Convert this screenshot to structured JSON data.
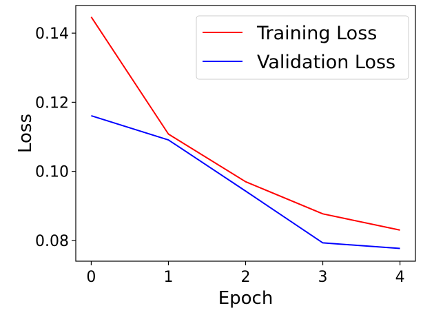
{
  "chart_data": {
    "type": "line",
    "title": "",
    "xlabel": "Epoch",
    "ylabel": "Loss",
    "x": [
      0,
      1,
      2,
      3,
      4
    ],
    "xlim": [
      -0.2,
      4.2
    ],
    "ylim": [
      0.074,
      0.148
    ],
    "xticks": [
      0,
      1,
      2,
      3,
      4
    ],
    "yticks": [
      0.08,
      0.1,
      0.12,
      0.14
    ],
    "xtick_labels": [
      "0",
      "1",
      "2",
      "3",
      "4"
    ],
    "ytick_labels": [
      "0.08",
      "0.10",
      "0.12",
      "0.14"
    ],
    "grid": false,
    "legend_position": "upper right",
    "series": [
      {
        "name": "Training Loss",
        "color": "#ff0000",
        "values": [
          0.1447,
          0.1108,
          0.097,
          0.0877,
          0.083
        ]
      },
      {
        "name": "Validation Loss",
        "color": "#0000ff",
        "values": [
          0.1161,
          0.1091,
          0.0943,
          0.0793,
          0.0777
        ]
      }
    ]
  }
}
